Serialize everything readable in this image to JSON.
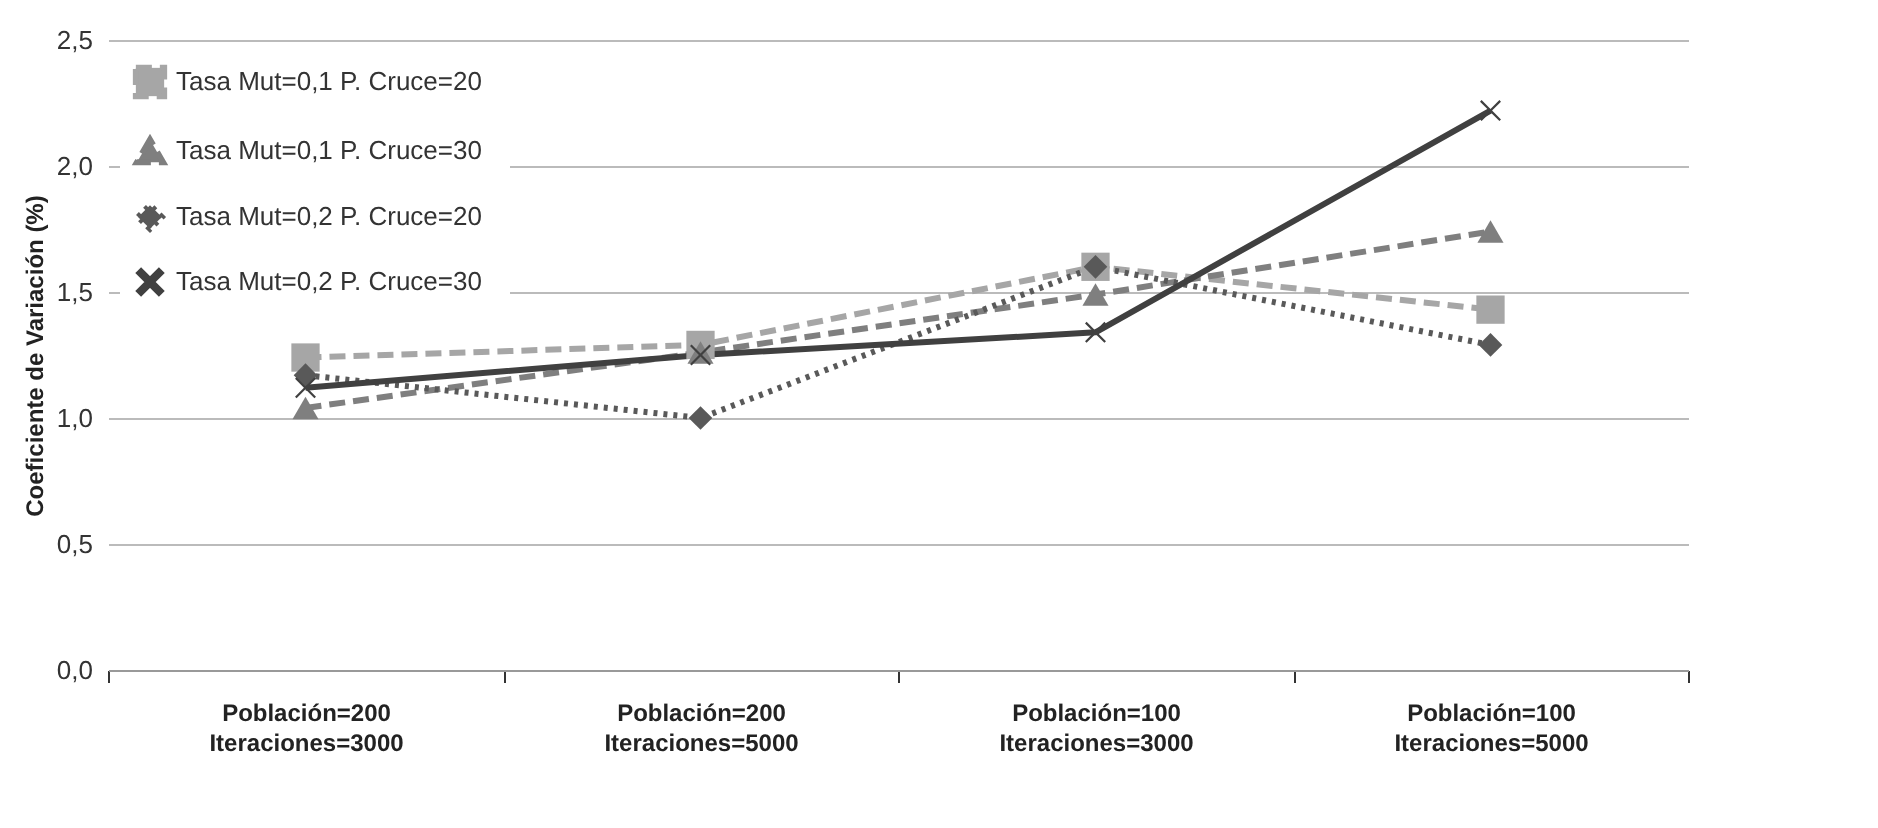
{
  "chart_data": {
    "type": "line",
    "ylabel": "Coeficiente de Variación (%)",
    "categories": [
      "Población=200\nIteraciones=3000",
      "Población=200\nIteraciones=5000",
      "Población=100\nIteraciones=3000",
      "Población=100\nIteraciones=5000"
    ],
    "series": [
      {
        "name": "Tasa Mut=0,1   P. Cruce=20",
        "color": "#a6a6a6",
        "marker": "square",
        "line_style": "dashed",
        "values": [
          1.24,
          1.29,
          1.6,
          1.43
        ]
      },
      {
        "name": "Tasa Mut=0,1   P. Cruce=30",
        "color": "#7f7f7f",
        "marker": "triangle",
        "line_style": "dashed",
        "values": [
          1.04,
          1.26,
          1.49,
          1.74
        ]
      },
      {
        "name": "Tasa Mut=0,2   P. Cruce=20",
        "color": "#595959",
        "marker": "diamond",
        "line_style": "dotted",
        "values": [
          1.17,
          1.0,
          1.6,
          1.29
        ]
      },
      {
        "name": "Tasa Mut=0,2   P. Cruce=30",
        "color": "#404040",
        "marker": "cross",
        "line_style": "solid",
        "values": [
          1.12,
          1.25,
          1.34,
          2.22
        ]
      }
    ],
    "ylim": [
      0,
      2.5
    ],
    "yticks": [
      {
        "value": 0,
        "label": "0,0"
      },
      {
        "value": 0.5,
        "label": "0,5"
      },
      {
        "value": 1,
        "label": "1,0"
      },
      {
        "value": 1.5,
        "label": "1,5"
      },
      {
        "value": 2,
        "label": "2,0"
      },
      {
        "value": 2.5,
        "label": "2,5"
      }
    ],
    "grid": "y",
    "legend": "top left"
  }
}
